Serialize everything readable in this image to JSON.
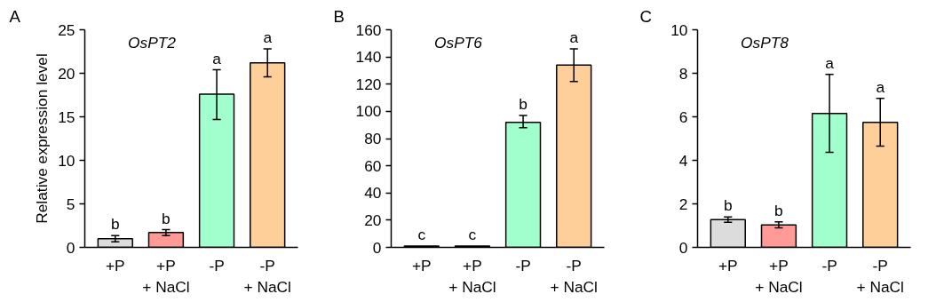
{
  "chart_data": [
    {
      "type": "bar",
      "title": "A",
      "subtitle": "OsPT2",
      "ylabel": "Relative expression level",
      "categories": [
        "+P",
        "+P\n+ NaCl",
        "-P",
        "-P\n+ NaCl"
      ],
      "colors": [
        "#dcdcdc",
        "#ff9a96",
        "#a0ffcc",
        "#ffcf99"
      ],
      "values": [
        1.0,
        1.7,
        17.6,
        21.2
      ],
      "errors": [
        0.35,
        0.35,
        [
          14.7,
          20.4
        ],
        [
          19.6,
          22.8
        ]
      ],
      "ylim": [
        0,
        25
      ],
      "yticks": [
        0,
        5,
        10,
        15,
        20,
        25
      ],
      "grid": false,
      "annotations": [
        {
          "text": "b",
          "x": "+P",
          "y": 1.35
        },
        {
          "text": "b",
          "x": "+P\n+ NaCl",
          "y": 2.0
        },
        {
          "text": "a",
          "x": "-P",
          "y": 20.4
        },
        {
          "text": "a",
          "x": "-P\n+ NaCl",
          "y": 22.8
        }
      ]
    },
    {
      "type": "bar",
      "title": "B",
      "subtitle": "OsPT6",
      "categories": [
        "+P",
        "+P\n+ NaCl",
        "-P",
        "-P\n+ NaCl"
      ],
      "colors": [
        "#dcdcdc",
        "#ff9a96",
        "#a0ffcc",
        "#ffcf99"
      ],
      "values": [
        1.0,
        1.0,
        92,
        134
      ],
      "errors": [
        null,
        null,
        [
          88,
          97
        ],
        [
          122,
          146
        ]
      ],
      "ylim": [
        0,
        160
      ],
      "yticks": [
        0,
        20,
        40,
        60,
        80,
        100,
        120,
        140,
        160
      ],
      "grid": false,
      "annotations": [
        {
          "text": "c",
          "x": "+P",
          "y": 1.0
        },
        {
          "text": "c",
          "x": "+P\n+ NaCl",
          "y": 1.0
        },
        {
          "text": "b",
          "x": "-P",
          "y": 97
        },
        {
          "text": "a",
          "x": "-P\n+ NaCl",
          "y": 146
        }
      ]
    },
    {
      "type": "bar",
      "title": "C",
      "subtitle": "OsPT8",
      "categories": [
        "+P",
        "+P\n+ NaCl",
        "-P",
        "-P\n+ NaCl"
      ],
      "colors": [
        "#dcdcdc",
        "#ff9a96",
        "#a0ffcc",
        "#ffcf99"
      ],
      "values": [
        1.28,
        1.03,
        6.15,
        5.75
      ],
      "errors": [
        [
          1.15,
          1.4
        ],
        [
          0.9,
          1.17
        ],
        [
          4.37,
          7.95
        ],
        [
          4.65,
          6.85
        ]
      ],
      "ylim": [
        0,
        10
      ],
      "yticks": [
        0,
        2,
        4,
        6,
        8,
        10
      ],
      "grid": false,
      "annotations": [
        {
          "text": "b",
          "x": "+P",
          "y": 1.4
        },
        {
          "text": "b",
          "x": "+P\n+ NaCl",
          "y": 1.17
        },
        {
          "text": "a",
          "x": "-P",
          "y": 7.95
        },
        {
          "text": "a",
          "x": "-P\n+ NaCl",
          "y": 6.85
        }
      ]
    }
  ]
}
